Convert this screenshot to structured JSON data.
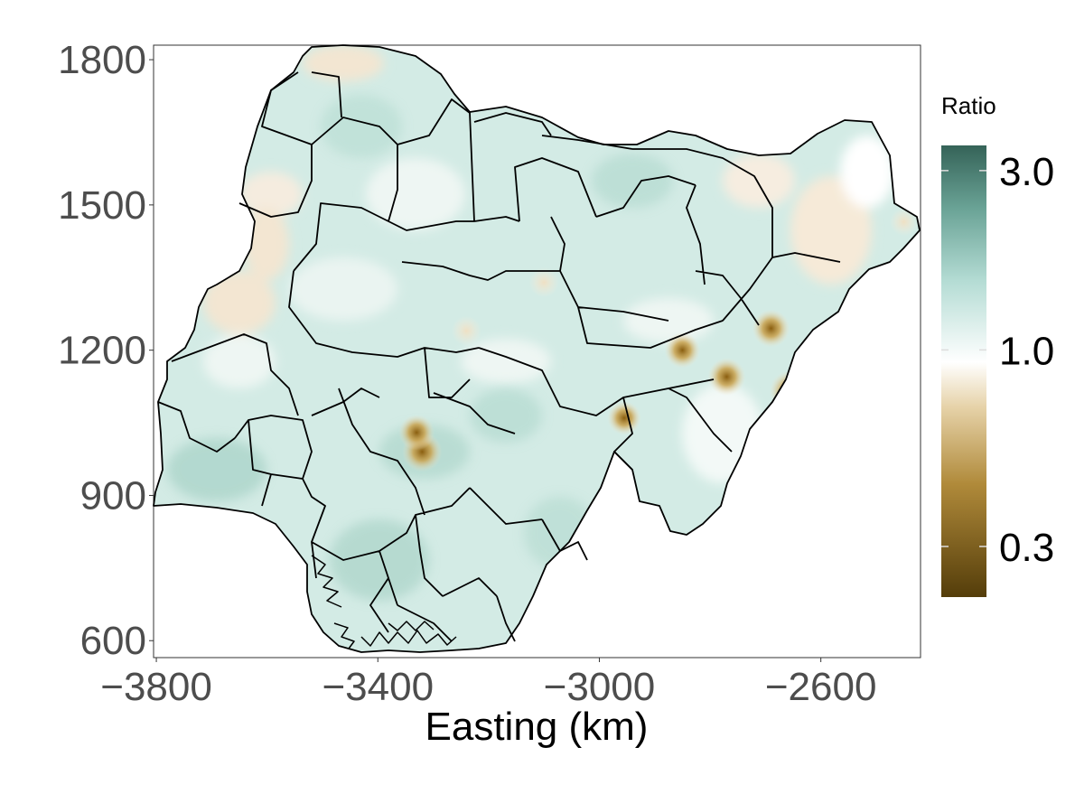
{
  "chart_data": {
    "type": "heatmap",
    "title": "",
    "xlabel": "Easting (km)",
    "ylabel": "",
    "xlim": [
      -3805,
      -2420
    ],
    "ylim": [
      565,
      1830
    ],
    "x_ticks": [
      {
        "value": -3800,
        "label": "−3800"
      },
      {
        "value": -3400,
        "label": "−3400"
      },
      {
        "value": -3000,
        "label": "−3000"
      },
      {
        "value": -2600,
        "label": "−2600"
      }
    ],
    "y_ticks": [
      {
        "value": 600,
        "label": "600"
      },
      {
        "value": 900,
        "label": "900"
      },
      {
        "value": 1200,
        "label": "1200"
      },
      {
        "value": 1500,
        "label": "1500"
      },
      {
        "value": 1800,
        "label": "1800"
      }
    ],
    "grid": false,
    "legend": {
      "title": "Ratio",
      "placement": "right",
      "scale": "log",
      "range": [
        0.22,
        3.5
      ],
      "ticks": [
        {
          "value": 0.3,
          "label": "0.3"
        },
        {
          "value": 1.0,
          "label": "1.0"
        },
        {
          "value": 3.0,
          "label": "3.0"
        }
      ],
      "colors": {
        "low": "#543d0a",
        "mid_low": "#c9a24e",
        "mid": "#ffffff",
        "mid_high": "#b4dcd4",
        "high": "#356358"
      }
    },
    "hotspots_low_ratio": [
      {
        "x": -3320,
        "y": 990,
        "value": 0.45
      },
      {
        "x": -3330,
        "y": 1030,
        "value": 0.55
      },
      {
        "x": -2655,
        "y": 1115,
        "value": 0.4
      },
      {
        "x": -2770,
        "y": 1145,
        "value": 0.5
      },
      {
        "x": -2850,
        "y": 1200,
        "value": 0.55
      },
      {
        "x": -2690,
        "y": 1245,
        "value": 0.5
      },
      {
        "x": -2955,
        "y": 1060,
        "value": 0.6
      },
      {
        "x": -3100,
        "y": 1340,
        "value": 0.7
      },
      {
        "x": -3240,
        "y": 1240,
        "value": 0.7
      },
      {
        "x": -2450,
        "y": 1465,
        "value": 0.75
      }
    ],
    "background_ratio": 1.25
  }
}
